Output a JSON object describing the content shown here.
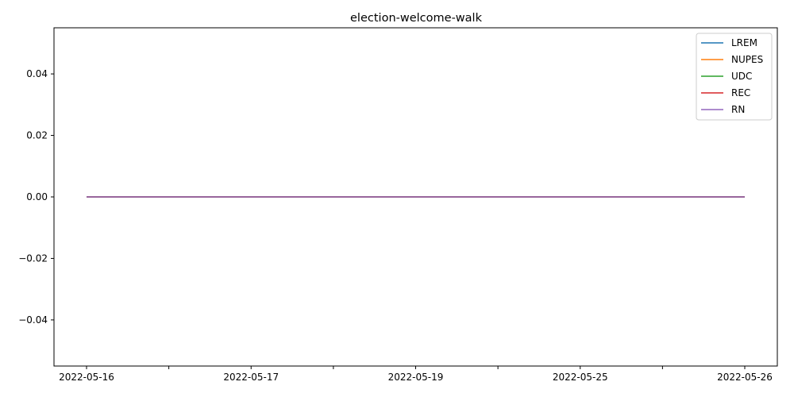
{
  "chart_data": {
    "type": "line",
    "title": "election-welcome-walk",
    "xlabel": "",
    "ylabel": "",
    "x": [
      "2022-05-16",
      "2022-05-17",
      "2022-05-19",
      "2022-05-25",
      "2022-05-26"
    ],
    "x_tick_labels": [
      "2022-05-16",
      "",
      "2022-05-17",
      "",
      "2022-05-19",
      "",
      "2022-05-25",
      "",
      "2022-05-26"
    ],
    "ylim": [
      -0.055,
      0.055
    ],
    "y_ticks": [
      0.04,
      0.02,
      0.0,
      -0.02,
      -0.04
    ],
    "y_tick_labels": [
      "0.04",
      "0.02",
      "0.00",
      "−0.02",
      "−0.04"
    ],
    "grid": false,
    "legend_position": "top-right",
    "series": [
      {
        "name": "LREM",
        "color": "#1f77b4",
        "values": [
          0,
          0,
          0,
          0,
          0
        ]
      },
      {
        "name": "NUPES",
        "color": "#ff7f0e",
        "values": [
          0,
          0,
          0,
          0,
          0
        ]
      },
      {
        "name": "UDC",
        "color": "#2ca02c",
        "values": [
          0,
          0,
          0,
          0,
          0
        ]
      },
      {
        "name": "REC",
        "color": "#d62728",
        "values": [
          0,
          0,
          0,
          0,
          0
        ]
      },
      {
        "name": "RN",
        "color": "#9467bd",
        "values": [
          0,
          0,
          0,
          0,
          0
        ]
      }
    ]
  }
}
